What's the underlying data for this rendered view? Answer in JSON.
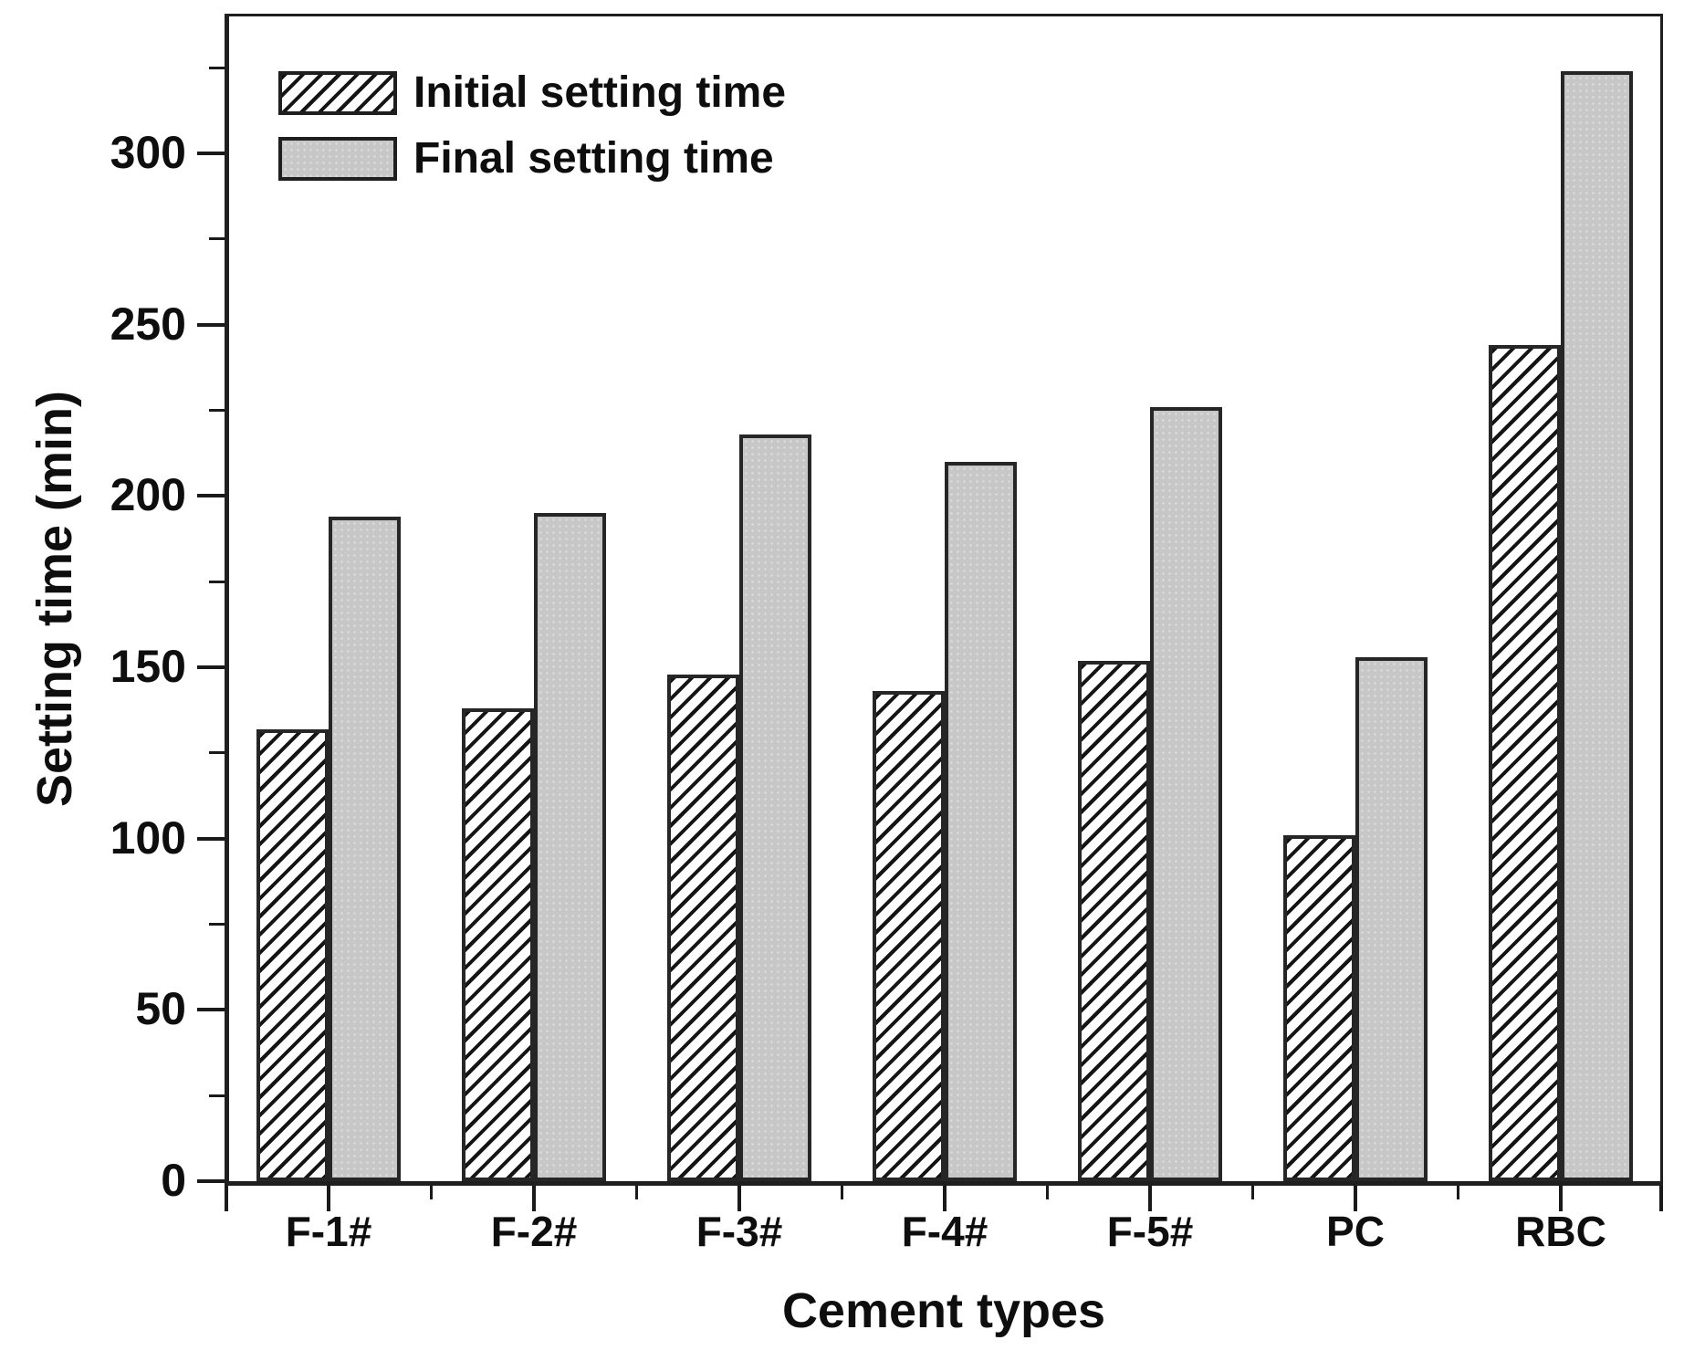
{
  "chart_data": {
    "type": "bar",
    "title": "",
    "categories": [
      "F-1#",
      "F-2#",
      "F-3#",
      "F-4#",
      "F-5#",
      "PC",
      "RBC"
    ],
    "series": [
      {
        "name": "Initial setting time",
        "fill": "diagonal-hatch",
        "values": [
          132,
          138,
          148,
          143,
          152,
          101,
          244
        ]
      },
      {
        "name": "Final setting time",
        "fill": "solid-gray",
        "values": [
          194,
          195,
          218,
          210,
          226,
          153,
          324
        ]
      }
    ],
    "xlabel": "Cement types",
    "ylabel": "Setting time (min)",
    "ylim": [
      0,
      340
    ],
    "yticks_major": [
      0,
      50,
      100,
      150,
      200,
      250,
      300
    ],
    "ytick_minor_interval": 25,
    "grid": false,
    "legend_position": "top-left-inside",
    "colors": {
      "bar_fill": "#c7c7c7",
      "bar_border": "#262626",
      "hatch_line": "#141414",
      "axis": "#1a1a1a",
      "text": "#0e0e0e",
      "background": "#ffffff"
    }
  }
}
